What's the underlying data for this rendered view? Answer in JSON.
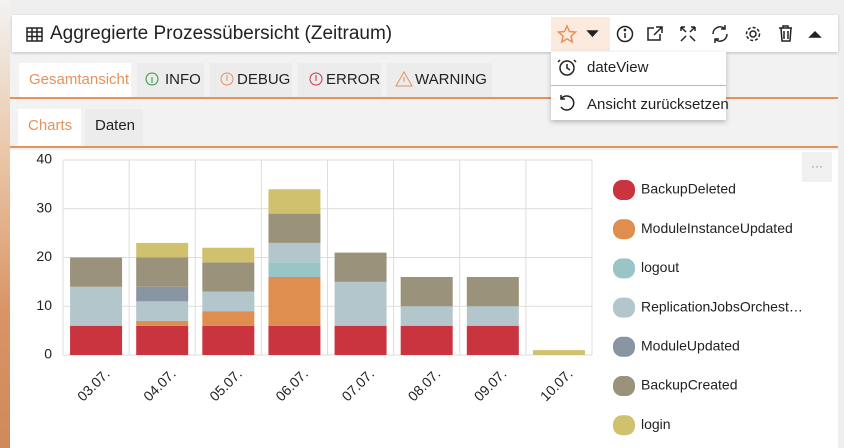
{
  "panel": {
    "title": "Aggregierte Prozessübersicht (Zeitraum)",
    "menu": [
      "dateView",
      "Ansicht zurücksetzen"
    ],
    "tabs": [
      "Gesamtansicht",
      "INFO",
      "DEBUG",
      "ERROR",
      "WARNING"
    ],
    "subtabs": [
      "Charts",
      "Daten"
    ],
    "more": "···"
  },
  "chart_data": {
    "type": "stacked-bar",
    "categories": [
      "03.07.",
      "04.07.",
      "05.07.",
      "06.07.",
      "07.07.",
      "08.07.",
      "09.07.",
      "10.07."
    ],
    "series": [
      {
        "name": "BackupDeleted",
        "color": "#c9343f",
        "values": [
          6,
          6,
          6,
          6,
          6,
          6,
          6,
          0
        ]
      },
      {
        "name": "ModuleInstanceUpdated",
        "color": "#e08e50",
        "values": [
          0,
          1,
          3,
          10,
          0,
          0,
          0,
          0
        ]
      },
      {
        "name": "logout",
        "color": "#99c5c6",
        "values": [
          0,
          0,
          0,
          3,
          0,
          0,
          0,
          0
        ]
      },
      {
        "name": "ReplicationJobsOrchest…",
        "color": "#b2c6cc",
        "values": [
          8,
          4,
          4,
          4,
          9,
          4,
          4,
          0
        ]
      },
      {
        "name": "ModuleUpdated",
        "color": "#8a95a4",
        "values": [
          0,
          3,
          0,
          0,
          0,
          0,
          0,
          0
        ]
      },
      {
        "name": "BackupCreated",
        "color": "#9a927a",
        "values": [
          6,
          6,
          6,
          6,
          6,
          6,
          6,
          0
        ]
      },
      {
        "name": "login",
        "color": "#d0c16e",
        "values": [
          0,
          3,
          3,
          5,
          0,
          0,
          0,
          1
        ]
      }
    ],
    "ylim": [
      0,
      40
    ],
    "yticks": [
      0,
      10,
      20,
      30,
      40
    ],
    "grid": true,
    "legend": "right"
  }
}
